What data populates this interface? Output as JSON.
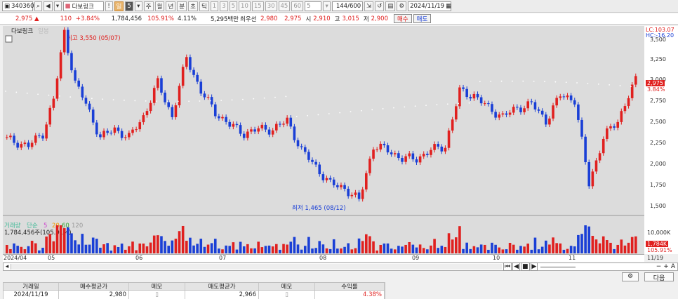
{
  "toolbar": {
    "code": "340360",
    "name": "다보링크",
    "periods": [
      "일",
      "5",
      "주",
      "월",
      "년",
      "분",
      "초",
      "틱"
    ],
    "minute_nums": [
      "1",
      "3",
      "5",
      "10",
      "15",
      "30",
      "45",
      "60",
      "5"
    ],
    "count": "144",
    "count_total": "/600",
    "date": "2024/11/19"
  },
  "info": {
    "price": "2,975 ▲",
    "change": "110",
    "change_pct": "+3.84%",
    "volume": "1,784,456",
    "vol_pct": "105.91%",
    "turnover": "4.11%",
    "amount": "5,295백만",
    "sell_label": "최우선",
    "sell_price": "2,980",
    "buy_price": "2,975",
    "open_label": "시",
    "open": "2,910",
    "high_label": "고",
    "high": "3,015",
    "low_label": "저",
    "low": "2,900",
    "buy_btn": "매수",
    "sell_btn": "매도"
  },
  "chart": {
    "legend_name": "다보링크",
    "legend_sub": "일봉",
    "high_annotation": "최고 3,550 (05/07)",
    "low_annotation": "최저 1,465 (08/12)",
    "lc": "LC:103.07",
    "hc": "HC:-16.20",
    "y_ticks": [
      "3,500",
      "3,250",
      "3,000",
      "2,750",
      "2,500",
      "2,250",
      "2,000",
      "1,750",
      "1,500"
    ],
    "price_tag": "2,975",
    "pct_tag": "3.84%",
    "volume_legend": {
      "label": "거래량",
      "ma_label": "단순",
      "ma1": "5",
      "ma2": "20",
      "ma3": "60",
      "ma4": "120"
    },
    "volume_value": "1,784,456주(105.91%)",
    "vol_tick": "10,000K",
    "vol_tag": "1,784K",
    "vol_pct_tag": "105.91%",
    "date_labels": [
      "2024/04",
      "05",
      "06",
      "07",
      "08",
      "09",
      "10",
      "11",
      "11/19"
    ],
    "colors": {
      "up": "#e0201f",
      "down": "#1a3fd6",
      "bg": "#dcdcdc"
    }
  },
  "bottom": {
    "next_btn": "다음"
  },
  "table": {
    "headers": [
      "거래일",
      "매수평균가",
      "메모",
      "매도평균가",
      "메모",
      "수익률"
    ],
    "rows": [
      [
        "2024/11/19",
        "2,980",
        "",
        "2,966",
        "",
        "4.38%"
      ]
    ]
  }
}
